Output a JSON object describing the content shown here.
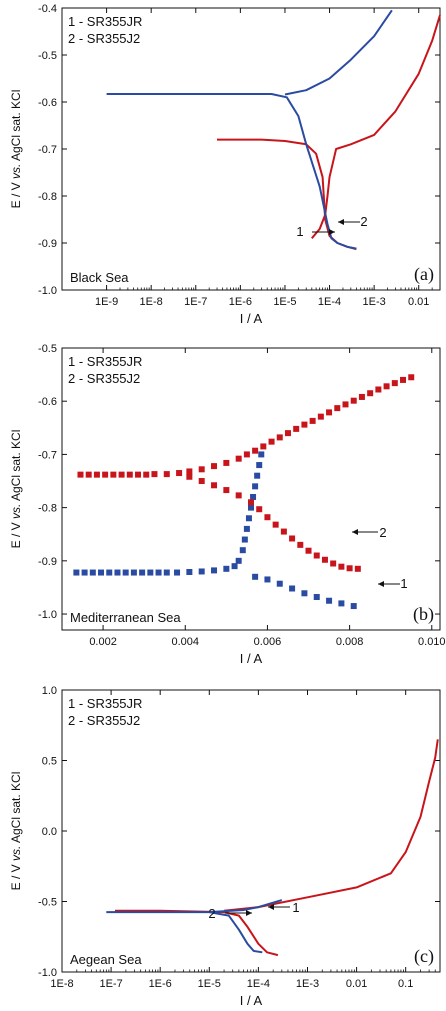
{
  "chart_data": [
    {
      "type": "line",
      "panel_label": "(a)",
      "region": "Black Sea",
      "xscale": "log",
      "xlim": [
        1e-10,
        0.03
      ],
      "ylim": [
        -1.0,
        -0.4
      ],
      "xlabel": "I / A",
      "ylabel": {
        "pre": "E / V ",
        "italic": "vs.",
        "post": " AgCl sat. KCl"
      },
      "xticks": [
        "1E-9",
        "1E-8",
        "1E-7",
        "1E-6",
        "1E-5",
        "1E-4",
        "1E-3",
        "0.01"
      ],
      "yticks": [
        "-0.4",
        "-0.5",
        "-0.6",
        "-0.7",
        "-0.8",
        "-0.9",
        "-1.0"
      ],
      "legend": [
        "1 - SR355JR",
        "2 - SR355J2"
      ],
      "annotations": [
        "1",
        "2"
      ],
      "series": [
        {
          "name": "1 - SR355JR",
          "color": "#c8151b",
          "points": [
            [
              4e-05,
              -0.89
            ],
            [
              6e-05,
              -0.87
            ],
            [
              8e-05,
              -0.84
            ],
            [
              9e-05,
              -0.8
            ],
            [
              0.0001,
              -0.76
            ],
            [
              0.00014,
              -0.7
            ],
            [
              0.0003,
              -0.69
            ],
            [
              0.001,
              -0.67
            ],
            [
              0.003,
              -0.62
            ],
            [
              0.01,
              -0.54
            ],
            [
              0.02,
              -0.47
            ],
            [
              0.03,
              -0.415
            ]
          ]
        },
        {
          "name": "1 - SR355JR",
          "color": "#c8151b",
          "points": [
            [
              3e-07,
              -0.68
            ],
            [
              3e-06,
              -0.68
            ],
            [
              1e-05,
              -0.683
            ],
            [
              3e-05,
              -0.69
            ],
            [
              5e-05,
              -0.71
            ],
            [
              7e-05,
              -0.76
            ],
            [
              8e-05,
              -0.85
            ],
            [
              0.0001,
              -0.885
            ],
            [
              0.00015,
              -0.9
            ],
            [
              0.00025,
              -0.908
            ],
            [
              0.0004,
              -0.913
            ]
          ]
        },
        {
          "name": "2 - SR355J2",
          "color": "#2a4ba2",
          "points": [
            [
              0.0004,
              -0.912
            ],
            [
              0.00025,
              -0.908
            ],
            [
              0.00015,
              -0.9
            ],
            [
              0.00011,
              -0.89
            ],
            [
              9e-05,
              -0.86
            ],
            [
              6e-05,
              -0.78
            ],
            [
              3e-05,
              -0.69
            ],
            [
              2e-05,
              -0.63
            ],
            [
              1.1e-05,
              -0.59
            ],
            [
              5e-06,
              -0.583
            ],
            [
              1e-09,
              -0.583
            ]
          ]
        },
        {
          "name": "2 - SR355J2",
          "color": "#2a4ba2",
          "points": [
            [
              1e-05,
              -0.584
            ],
            [
              3e-05,
              -0.575
            ],
            [
              0.0001,
              -0.55
            ],
            [
              0.0003,
              -0.51
            ],
            [
              0.001,
              -0.46
            ],
            [
              0.0025,
              -0.405
            ]
          ]
        }
      ]
    },
    {
      "type": "scatter",
      "panel_label": "(b)",
      "region": "Mediterranean Sea",
      "xscale": "linear",
      "xlim": [
        0.001,
        0.0102
      ],
      "ylim": [
        -1.03,
        -0.5
      ],
      "xlabel": "I / A",
      "ylabel": {
        "pre": "E / V ",
        "italic": "vs.",
        "post": " AgCl sat. KCl"
      },
      "xticks": [
        "0.002",
        "0.004",
        "0.006",
        "0.008",
        "0.010"
      ],
      "yticks": [
        "-0.5",
        "-0.6",
        "-0.7",
        "-0.8",
        "-0.9",
        "-1.0"
      ],
      "legend": [
        "1 - SR355JR",
        "2 - SR355J2"
      ],
      "annotations": [
        "1",
        "2"
      ],
      "series": [
        {
          "name": "1 - SR355JR",
          "color": "#2a4ba2",
          "points": [
            [
              0.00135,
              -0.922
            ],
            [
              0.00155,
              -0.922
            ],
            [
              0.00175,
              -0.922
            ],
            [
              0.00195,
              -0.922
            ],
            [
              0.00215,
              -0.922
            ],
            [
              0.00235,
              -0.922
            ],
            [
              0.00255,
              -0.922
            ],
            [
              0.00275,
              -0.922
            ],
            [
              0.00295,
              -0.922
            ],
            [
              0.00315,
              -0.922
            ],
            [
              0.00335,
              -0.922
            ],
            [
              0.00355,
              -0.922
            ],
            [
              0.0038,
              -0.922
            ],
            [
              0.0041,
              -0.921
            ],
            [
              0.0044,
              -0.92
            ],
            [
              0.0047,
              -0.918
            ],
            [
              0.005,
              -0.915
            ],
            [
              0.0052,
              -0.91
            ],
            [
              0.0053,
              -0.9
            ],
            [
              0.0054,
              -0.88
            ],
            [
              0.00545,
              -0.86
            ],
            [
              0.0055,
              -0.84
            ],
            [
              0.00555,
              -0.82
            ],
            [
              0.0056,
              -0.8
            ],
            [
              0.00565,
              -0.78
            ],
            [
              0.0057,
              -0.76
            ],
            [
              0.00575,
              -0.74
            ],
            [
              0.0058,
              -0.72
            ],
            [
              0.00585,
              -0.7
            ],
            [
              0.0057,
              -0.93
            ],
            [
              0.006,
              -0.935
            ],
            [
              0.0063,
              -0.943
            ],
            [
              0.0066,
              -0.952
            ],
            [
              0.0069,
              -0.961
            ],
            [
              0.0072,
              -0.968
            ],
            [
              0.0075,
              -0.975
            ],
            [
              0.0078,
              -0.98
            ],
            [
              0.0081,
              -0.985
            ]
          ]
        },
        {
          "name": "2 - SR355J2",
          "color": "#c8151b",
          "points": [
            [
              0.00145,
              -0.738
            ],
            [
              0.00165,
              -0.738
            ],
            [
              0.00185,
              -0.738
            ],
            [
              0.00205,
              -0.738
            ],
            [
              0.00225,
              -0.738
            ],
            [
              0.00245,
              -0.738
            ],
            [
              0.00265,
              -0.738
            ],
            [
              0.00285,
              -0.738
            ],
            [
              0.00305,
              -0.738
            ],
            [
              0.00325,
              -0.737
            ],
            [
              0.00355,
              -0.737
            ],
            [
              0.00385,
              -0.735
            ],
            [
              0.0041,
              -0.732
            ],
            [
              0.0044,
              -0.728
            ],
            [
              0.0047,
              -0.722
            ],
            [
              0.005,
              -0.716
            ],
            [
              0.0053,
              -0.708
            ],
            [
              0.0055,
              -0.7
            ],
            [
              0.0057,
              -0.693
            ],
            [
              0.0059,
              -0.685
            ],
            [
              0.0061,
              -0.676
            ],
            [
              0.0063,
              -0.668
            ],
            [
              0.0065,
              -0.66
            ],
            [
              0.0067,
              -0.652
            ],
            [
              0.0069,
              -0.644
            ],
            [
              0.0071,
              -0.637
            ],
            [
              0.0073,
              -0.629
            ],
            [
              0.0075,
              -0.621
            ],
            [
              0.0077,
              -0.613
            ],
            [
              0.0079,
              -0.606
            ],
            [
              0.0081,
              -0.599
            ],
            [
              0.0083,
              -0.592
            ],
            [
              0.0085,
              -0.585
            ],
            [
              0.0087,
              -0.578
            ],
            [
              0.0089,
              -0.572
            ],
            [
              0.0091,
              -0.566
            ],
            [
              0.0093,
              -0.56
            ],
            [
              0.0095,
              -0.555
            ],
            [
              0.0041,
              -0.742
            ],
            [
              0.0044,
              -0.75
            ],
            [
              0.0047,
              -0.758
            ],
            [
              0.005,
              -0.767
            ],
            [
              0.0053,
              -0.777
            ],
            [
              0.0056,
              -0.79
            ],
            [
              0.0058,
              -0.803
            ],
            [
              0.006,
              -0.818
            ],
            [
              0.0062,
              -0.832
            ],
            [
              0.0064,
              -0.845
            ],
            [
              0.0066,
              -0.858
            ],
            [
              0.0068,
              -0.87
            ],
            [
              0.007,
              -0.881
            ],
            [
              0.0072,
              -0.89
            ],
            [
              0.0074,
              -0.898
            ],
            [
              0.0076,
              -0.905
            ],
            [
              0.0078,
              -0.911
            ],
            [
              0.008,
              -0.914
            ],
            [
              0.0082,
              -0.915
            ]
          ]
        }
      ]
    },
    {
      "type": "line",
      "panel_label": "(c)",
      "region": "Aegean Sea",
      "xscale": "log",
      "xlim": [
        1e-08,
        0.5
      ],
      "ylim": [
        -1.0,
        1.0
      ],
      "xlabel": "I / A",
      "ylabel": {
        "pre": "E / V ",
        "italic": "vs.",
        "post": " AgCl sat. KCl"
      },
      "xticks": [
        "1E-8",
        "1E-7",
        "1E-6",
        "1E-5",
        "1E-4",
        "1E-3",
        "0.01",
        "0.1"
      ],
      "yticks": [
        "1.0",
        "0.5",
        "0.0",
        "-0.5",
        "-1.0"
      ],
      "legend": [
        "1 - SR355JR",
        "2 - SR355J2"
      ],
      "annotations": [
        "1",
        "2"
      ],
      "series": [
        {
          "name": "1 - SR355JR",
          "color": "#c8151b",
          "points": [
            [
              0.00025,
              -0.88
            ],
            [
              0.00015,
              -0.86
            ],
            [
              0.0001,
              -0.8
            ],
            [
              6e-05,
              -0.68
            ],
            [
              4e-05,
              -0.6
            ],
            [
              2e-05,
              -0.575
            ],
            [
              1e-06,
              -0.565
            ],
            [
              1.2e-07,
              -0.565
            ]
          ]
        },
        {
          "name": "1 - SR355JR",
          "color": "#c8151b",
          "points": [
            [
              2e-05,
              -0.565
            ],
            [
              0.0001,
              -0.54
            ],
            [
              0.001,
              -0.47
            ],
            [
              0.01,
              -0.4
            ],
            [
              0.05,
              -0.3
            ],
            [
              0.1,
              -0.15
            ],
            [
              0.2,
              0.1
            ],
            [
              0.3,
              0.35
            ],
            [
              0.4,
              0.52
            ],
            [
              0.45,
              0.65
            ]
          ]
        },
        {
          "name": "2 - SR355J2",
          "color": "#2a4ba2",
          "points": [
            [
              8e-08,
              -0.575
            ],
            [
              1e-06,
              -0.575
            ],
            [
              1e-05,
              -0.575
            ],
            [
              2.5e-05,
              -0.6
            ],
            [
              4e-05,
              -0.7
            ],
            [
              6e-05,
              -0.8
            ],
            [
              8e-05,
              -0.85
            ],
            [
              0.00012,
              -0.86
            ]
          ]
        },
        {
          "name": "2 - SR355J2",
          "color": "#2a4ba2",
          "points": [
            [
              1e-05,
              -0.575
            ],
            [
              5e-05,
              -0.56
            ],
            [
              0.0001,
              -0.54
            ],
            [
              0.0003,
              -0.49
            ]
          ]
        }
      ]
    }
  ]
}
